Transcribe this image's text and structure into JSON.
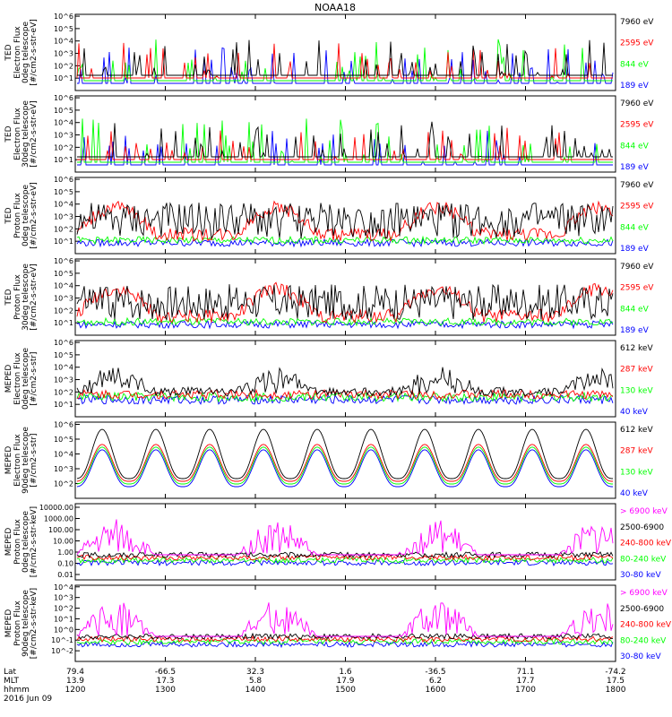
{
  "title": "NOAA18",
  "colors": {
    "black": "#000000",
    "red": "#ff0000",
    "green": "#00ff00",
    "blue": "#0000ff",
    "magenta": "#ff00ff"
  },
  "footer": {
    "row_labels": [
      "Lat",
      "MLT",
      "hhmm",
      "2016 Jun 09"
    ],
    "ticks": [
      {
        "lat": "79.4",
        "mlt": "13.9",
        "hhmm": "1200"
      },
      {
        "lat": "-66.5",
        "mlt": "17.3",
        "hhmm": "1300"
      },
      {
        "lat": "32.3",
        "mlt": "5.8",
        "hhmm": "1400"
      },
      {
        "lat": "1.6",
        "mlt": "17.9",
        "hhmm": "1500"
      },
      {
        "lat": "-36.5",
        "mlt": "6.2",
        "hhmm": "1600"
      },
      {
        "lat": "71.1",
        "mlt": "17.7",
        "hhmm": "1700"
      },
      {
        "lat": "-74.2",
        "mlt": "17.5",
        "hhmm": "1800"
      }
    ]
  },
  "chart_data": [
    {
      "type": "line",
      "ylabel": [
        "TED",
        "Electron Flux",
        "0deg telescope",
        "[#/cm2-s-str-eV]"
      ],
      "yscale": "log",
      "ylim": [
        1,
        1000000
      ],
      "ytick_labels": [
        "10^1",
        "10^2",
        "10^3",
        "10^4",
        "10^5",
        "10^6"
      ],
      "series": [
        {
          "name": "7960 eV",
          "color": "#000000"
        },
        {
          "name": "2595 eV",
          "color": "#ff0000"
        },
        {
          "name": "844 eV",
          "color": "#00ff00"
        },
        {
          "name": "189 eV",
          "color": "#0000ff"
        }
      ]
    },
    {
      "type": "line",
      "ylabel": [
        "TED",
        "Electron Flux",
        "30deg telescope",
        "[#/cm2-s-str-eV]"
      ],
      "yscale": "log",
      "ylim": [
        1,
        1000000
      ],
      "ytick_labels": [
        "10^1",
        "10^2",
        "10^3",
        "10^4",
        "10^5",
        "10^6"
      ],
      "series": [
        {
          "name": "7960 eV",
          "color": "#000000"
        },
        {
          "name": "2595 eV",
          "color": "#ff0000"
        },
        {
          "name": "844 eV",
          "color": "#00ff00"
        },
        {
          "name": "189 eV",
          "color": "#0000ff"
        }
      ]
    },
    {
      "type": "line",
      "ylabel": [
        "TED",
        "Proton Flux",
        "0deg telescope",
        "[#/cm2-s-str-eV]"
      ],
      "yscale": "log",
      "ylim": [
        1,
        1000000
      ],
      "ytick_labels": [
        "10^1",
        "10^2",
        "10^3",
        "10^4",
        "10^5",
        "10^6"
      ],
      "series": [
        {
          "name": "7960 eV",
          "color": "#000000"
        },
        {
          "name": "2595 eV",
          "color": "#ff0000"
        },
        {
          "name": "844 eV",
          "color": "#00ff00"
        },
        {
          "name": "189 eV",
          "color": "#0000ff"
        }
      ]
    },
    {
      "type": "line",
      "ylabel": [
        "TED",
        "Proton Flux",
        "30deg telescope",
        "[#/cm2-s-str-eV]"
      ],
      "yscale": "log",
      "ylim": [
        1,
        1000000
      ],
      "ytick_labels": [
        "10^1",
        "10^2",
        "10^3",
        "10^4",
        "10^5",
        "10^6"
      ],
      "series": [
        {
          "name": "7960 eV",
          "color": "#000000"
        },
        {
          "name": "2595 eV",
          "color": "#ff0000"
        },
        {
          "name": "844 eV",
          "color": "#00ff00"
        },
        {
          "name": "189 eV",
          "color": "#0000ff"
        }
      ]
    },
    {
      "type": "line",
      "ylabel": [
        "MEPED",
        "Electron Flux",
        "0deg telescope",
        "[#/cm2-s-str]"
      ],
      "yscale": "log",
      "ylim": [
        1,
        1000000
      ],
      "ytick_labels": [
        "10^1",
        "10^2",
        "10^3",
        "10^4",
        "10^5",
        "10^6"
      ],
      "series": [
        {
          "name": "612 keV",
          "color": "#000000"
        },
        {
          "name": "287 keV",
          "color": "#ff0000"
        },
        {
          "name": "130 keV",
          "color": "#00ff00"
        },
        {
          "name": "40 keV",
          "color": "#0000ff"
        }
      ]
    },
    {
      "type": "line",
      "ylabel": [
        "MEPED",
        "Electron Flux",
        "90deg telescope",
        "[#/cm2-s-str]"
      ],
      "yscale": "log",
      "ylim": [
        10,
        1000000
      ],
      "ytick_labels": [
        "10^2",
        "10^3",
        "10^4",
        "10^5",
        "10^6"
      ],
      "series": [
        {
          "name": "612 keV",
          "color": "#000000"
        },
        {
          "name": "287 keV",
          "color": "#ff0000"
        },
        {
          "name": "130 keV",
          "color": "#00ff00"
        },
        {
          "name": "40 keV",
          "color": "#0000ff"
        }
      ]
    },
    {
      "type": "line",
      "ylabel": [
        "MEPED",
        "Proton Flux",
        "0deg telescope",
        "[#/cm2-s-str-keV]"
      ],
      "yscale": "log",
      "ylim": [
        0.01,
        10000
      ],
      "ytick_labels": [
        "0.01",
        "0.10",
        "1.00",
        "10.00",
        "100.00",
        "1000.00",
        "10000.00"
      ],
      "series": [
        {
          "name": "> 6900 keV",
          "color": "#ff00ff"
        },
        {
          "name": "2500-6900",
          "color": "#000000"
        },
        {
          "name": "240-800 keV",
          "color": "#ff0000"
        },
        {
          "name": "80-240 keV",
          "color": "#00ff00"
        },
        {
          "name": "30-80 keV",
          "color": "#0000ff"
        }
      ]
    },
    {
      "type": "line",
      "ylabel": [
        "MEPED",
        "Proton Flux",
        "90deg telescope",
        "[#/cm2-s-str-keV]"
      ],
      "yscale": "log",
      "ylim": [
        0.01,
        100000
      ],
      "ytick_labels": [
        "10^-2",
        "10^-1",
        "10^0",
        "10^1",
        "10^2",
        "10^3",
        "10^4"
      ],
      "series": [
        {
          "name": "> 6900 keV",
          "color": "#ff00ff"
        },
        {
          "name": "2500-6900",
          "color": "#000000"
        },
        {
          "name": "240-800 keV",
          "color": "#ff0000"
        },
        {
          "name": "80-240 keV",
          "color": "#00ff00"
        },
        {
          "name": "30-80 keV",
          "color": "#0000ff"
        }
      ]
    }
  ]
}
